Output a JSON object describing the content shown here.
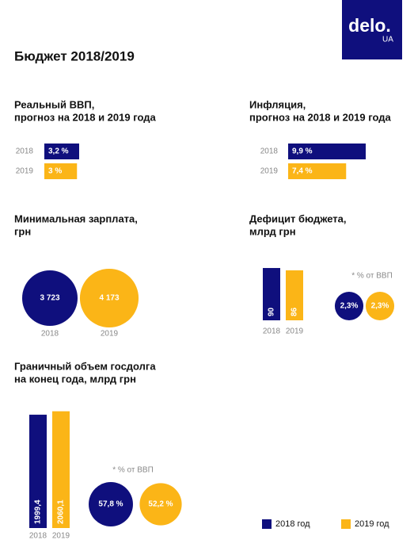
{
  "header": {
    "logo": "delo.",
    "logo_sub": "UA",
    "title": "Бюджет 2018/2019"
  },
  "legend": [
    {
      "label": "2018 год",
      "color": "#0f0f7d"
    },
    {
      "label": "2019 год",
      "color": "#fbb517"
    }
  ],
  "chart_data": [
    {
      "type": "bar",
      "orientation": "horizontal",
      "title": [
        "Реальный ВВП,",
        "прогноз на 2018 и 2019 года"
      ],
      "categories": [
        "2018",
        "2019"
      ],
      "values": [
        3.2,
        3
      ],
      "value_labels": [
        "3,2 %",
        "3 %"
      ]
    },
    {
      "type": "bar",
      "orientation": "horizontal",
      "title": [
        "Инфляция,",
        "прогноз на 2018 и 2019 года"
      ],
      "categories": [
        "2018",
        "2019"
      ],
      "values": [
        9.9,
        7.4
      ],
      "value_labels": [
        "9,9 %",
        "7,4 %"
      ]
    },
    {
      "type": "bubble",
      "title": [
        "Минимальная зарплата,",
        "грн"
      ],
      "categories": [
        "2018",
        "2019"
      ],
      "values": [
        3723,
        4173
      ],
      "value_labels": [
        "3 723",
        "4 173"
      ]
    },
    {
      "type": "bar",
      "orientation": "vertical",
      "title": [
        "Дефицит бюджета,",
        "млрд грн"
      ],
      "categories": [
        "2018",
        "2019"
      ],
      "values": [
        90,
        86
      ],
      "share": {
        "note": "* % от ВВП",
        "values": [
          2.3,
          2.3
        ],
        "value_labels": [
          "2,3%",
          "2,3%"
        ]
      }
    },
    {
      "type": "bar",
      "orientation": "vertical",
      "title": [
        "Граничный объем госдолга",
        "на конец года, млрд грн"
      ],
      "categories": [
        "2018",
        "2019"
      ],
      "values": [
        1999.4,
        2060.1
      ],
      "value_labels": [
        "1999,4",
        "2060,1"
      ],
      "share": {
        "note": "* % от ВВП",
        "values": [
          57.8,
          52.2
        ],
        "value_labels": [
          "57,8 %",
          "52,2 %"
        ]
      }
    }
  ]
}
